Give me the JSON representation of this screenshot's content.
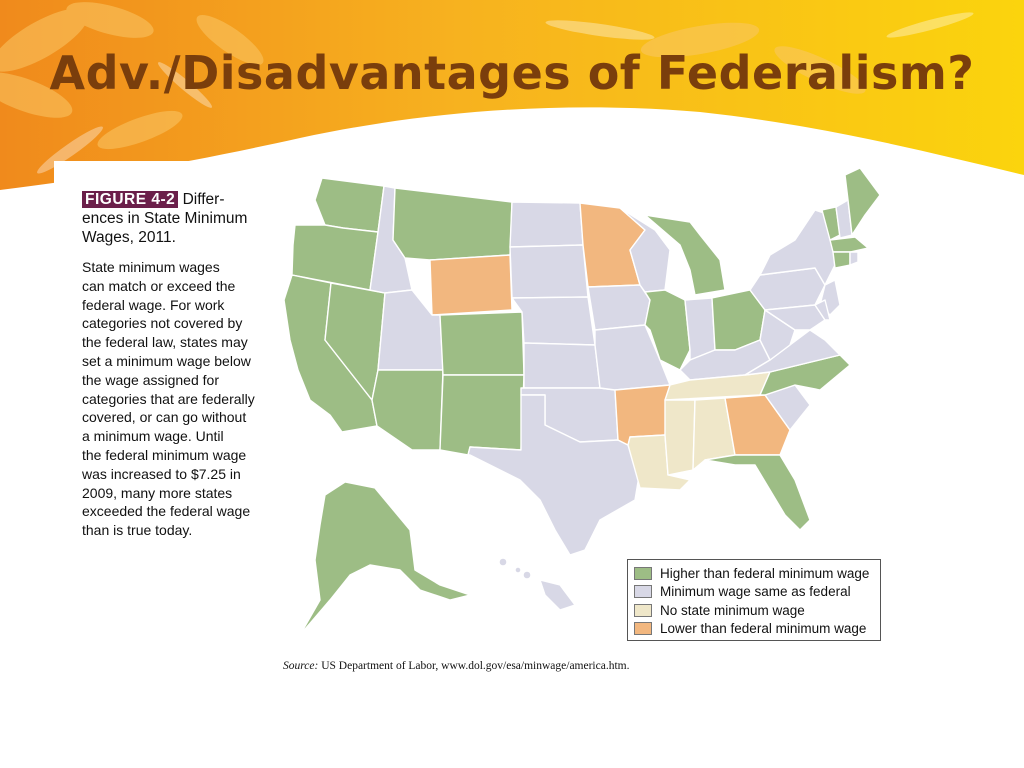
{
  "slide": {
    "title": "Adv./Disadvantages of Federalism?"
  },
  "figure": {
    "label": "FIGURE 4-2",
    "heading": "Differences in State Minimum Wages, 2011.",
    "heading_line1": " Differ-",
    "heading_line2": "ences in State Minimum",
    "heading_line3": "Wages, 2011.",
    "description_lines": [
      "State minimum wages",
      "can match or exceed the",
      "federal wage. For work",
      "categories not covered by",
      "the federal law, states may",
      "set a minimum wage below",
      "the wage assigned for",
      "categories that are federally",
      "covered, or can go without",
      "a minimum wage. Until",
      "the federal minimum wage",
      "was increased to $7.25 in",
      "2009, many more states",
      "exceeded the federal wage",
      "than is true today."
    ],
    "source_label": "Source:",
    "source_text": " US Department of Labor, www.dol.gov/esa/minwage/america.htm."
  },
  "legend": {
    "items": [
      {
        "label": "Higher than federal minimum wage",
        "color": "#9dbd85"
      },
      {
        "label": "Minimum wage same as federal",
        "color": "#d8d8e6"
      },
      {
        "label": "No state minimum wage",
        "color": "#efe7c9"
      },
      {
        "label": "Lower than federal minimum wage",
        "color": "#f2b77f"
      }
    ]
  },
  "map": {
    "colors": {
      "higher": "#9dbd85",
      "same": "#d8d8e6",
      "none": "#efe7c9",
      "lower": "#f2b77f",
      "border": "#ffffff",
      "outline": "#8a8a8a"
    },
    "categories": {
      "higher": [
        "WA",
        "OR",
        "CA",
        "NV",
        "MT",
        "AZ",
        "NM",
        "CO",
        "IL",
        "MI",
        "OH",
        "FL",
        "NC",
        "VT",
        "MA",
        "CT",
        "ME",
        "AK"
      ],
      "same": [
        "ID",
        "UT",
        "ND",
        "SD",
        "NE",
        "KS",
        "OK",
        "TX",
        "IA",
        "MO",
        "WI",
        "IN",
        "KY",
        "WV",
        "VA",
        "PA",
        "NY",
        "NH",
        "NJ",
        "MD",
        "DE",
        "RI",
        "SC",
        "HI"
      ],
      "none": [
        "LA",
        "MS",
        "AL",
        "TN"
      ],
      "lower": [
        "WY",
        "MN",
        "AR",
        "GA"
      ]
    }
  }
}
